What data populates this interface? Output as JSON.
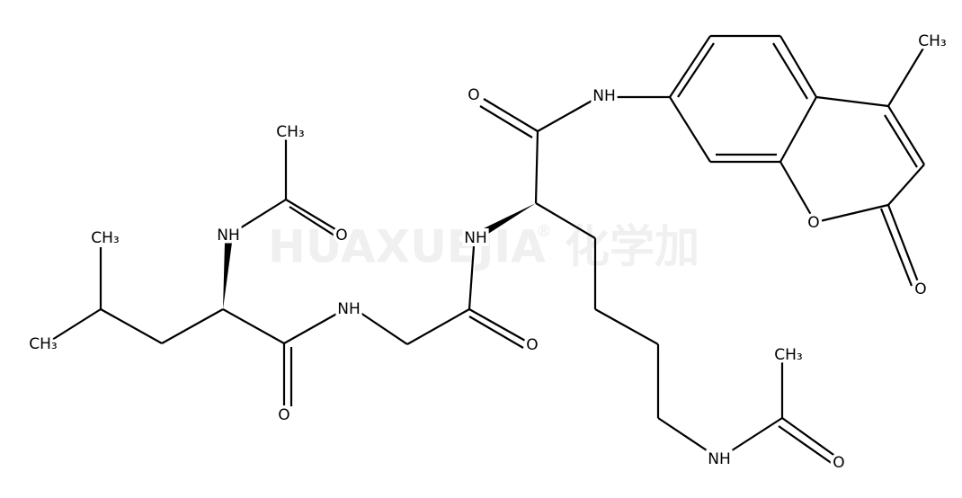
{
  "watermark": {
    "brand": "HUAXUEJIA",
    "mark": "®",
    "chinese": "化学加"
  },
  "atoms": [
    {
      "label": "CH₃"
    },
    {
      "label": "NH"
    },
    {
      "label": "O"
    },
    {
      "label": "CH₃"
    },
    {
      "label": "CH₃"
    },
    {
      "label": "NH"
    },
    {
      "label": "O"
    },
    {
      "label": "O"
    },
    {
      "label": "NH"
    },
    {
      "label": "O"
    },
    {
      "label": "NH"
    },
    {
      "label": "CH₃"
    },
    {
      "label": "O"
    },
    {
      "label": "O"
    },
    {
      "label": "CH₃"
    },
    {
      "label": "NH"
    },
    {
      "label": "O"
    }
  ]
}
